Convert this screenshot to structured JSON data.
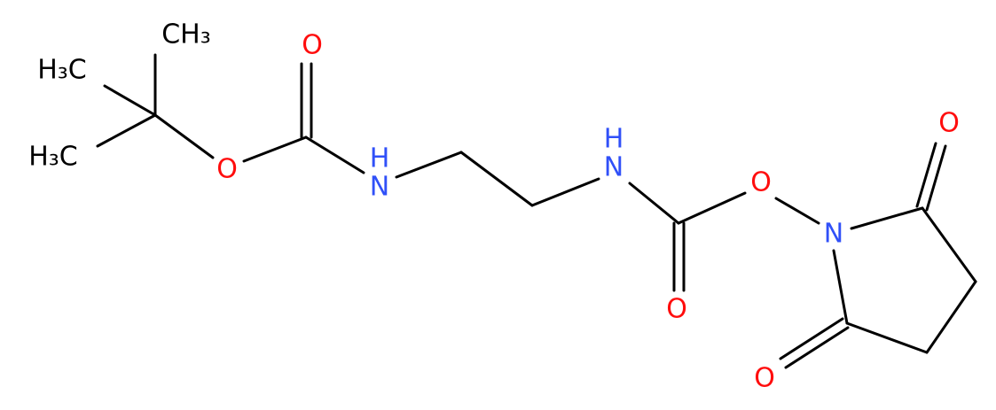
{
  "atoms": [
    {
      "label": "CH₃"
    },
    {
      "label": "H₃C"
    },
    {
      "label": "H₃C"
    },
    {
      "label": "O"
    },
    {
      "label": "O"
    },
    {
      "label": "H"
    },
    {
      "label": "N"
    },
    {
      "label": "H"
    },
    {
      "label": "N"
    },
    {
      "label": "O"
    },
    {
      "label": "O"
    },
    {
      "label": "N"
    },
    {
      "label": "O"
    },
    {
      "label": "O"
    }
  ]
}
